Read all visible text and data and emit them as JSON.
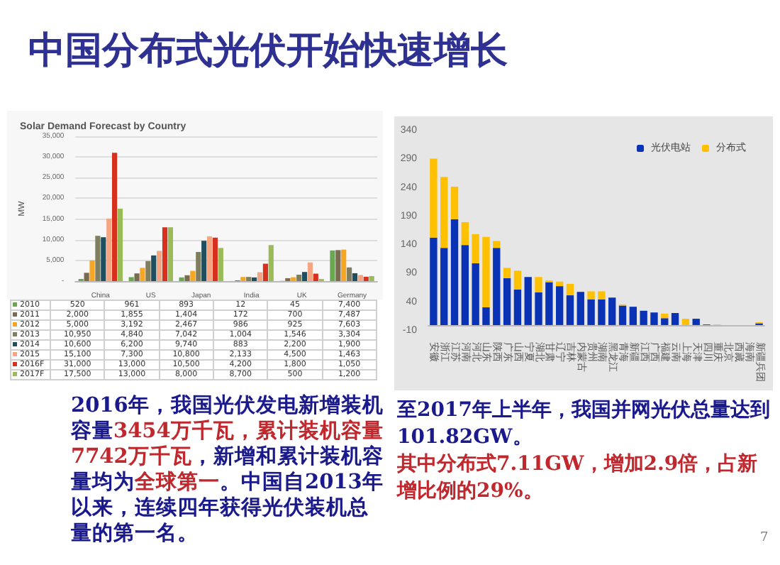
{
  "chart_data": [
    {
      "type": "bar",
      "title": "Solar Demand Forecast by Country",
      "ylabel": "MW",
      "legend": "bottom left",
      "categories": [
        "China",
        "US",
        "Japan",
        "India",
        "UK",
        "Germany"
      ],
      "ylim": [
        0,
        35000
      ],
      "yticks": [
        {
          "value": 0,
          "label": "-"
        },
        {
          "value": 5000,
          "label": "5,000"
        },
        {
          "value": 10000,
          "label": "10,000"
        },
        {
          "value": 15000,
          "label": "15,000"
        },
        {
          "value": 20000,
          "label": "20,000"
        },
        {
          "value": 25000,
          "label": "25,000"
        },
        {
          "value": 30000,
          "label": "30,000"
        },
        {
          "value": 35000,
          "label": "35,000"
        }
      ],
      "grid": "y",
      "series": [
        {
          "name": "2010",
          "color": "#6aa84f",
          "values": [
            520,
            961,
            893,
            12,
            45,
            7400
          ],
          "value_labels": [
            "520",
            "961",
            "893",
            "12",
            "45",
            "7,400"
          ]
        },
        {
          "name": "2011",
          "color": "#7a6a4f",
          "values": [
            2000,
            1855,
            1404,
            172,
            700,
            7487
          ],
          "value_labels": [
            "2,000",
            "1,855",
            "1,404",
            "172",
            "700",
            "7,487"
          ]
        },
        {
          "name": "2012",
          "color": "#f5a623",
          "values": [
            5000,
            3192,
            2467,
            986,
            925,
            7603
          ],
          "value_labels": [
            "5,000",
            "3,192",
            "2,467",
            "986",
            "925",
            "7,603"
          ]
        },
        {
          "name": "2013",
          "color": "#7f7f60",
          "values": [
            10950,
            4840,
            7042,
            1004,
            1546,
            3304
          ],
          "value_labels": [
            "10,950",
            "4,840",
            "7,042",
            "1,004",
            "1,546",
            "3,304"
          ]
        },
        {
          "name": "2014",
          "color": "#1f4e5f",
          "values": [
            10600,
            6200,
            9740,
            883,
            2200,
            1900
          ],
          "value_labels": [
            "10,600",
            "6,200",
            "9,740",
            "883",
            "2,200",
            "1,900"
          ]
        },
        {
          "name": "2015",
          "color": "#f4a582",
          "values": [
            15100,
            7300,
            10800,
            2133,
            4500,
            1463
          ],
          "value_labels": [
            "15,100",
            "7,300",
            "10,800",
            "2,133",
            "4,500",
            "1,463"
          ]
        },
        {
          "name": "2016F",
          "color": "#d7301f",
          "values": [
            31000,
            13000,
            10500,
            4200,
            1800,
            1050
          ],
          "value_labels": [
            "31,000",
            "13,000",
            "10,500",
            "4,200",
            "1,800",
            "1,050"
          ]
        },
        {
          "name": "2017F",
          "color": "#9bbb59",
          "values": [
            17500,
            13000,
            8000,
            8700,
            500,
            1200
          ],
          "value_labels": [
            "17,500",
            "13,000",
            "8,000",
            "8,700",
            "500",
            "1,200"
          ]
        }
      ]
    },
    {
      "type": "bar",
      "stacked": true,
      "legend": "top right",
      "categories": [
        "安徽",
        "浙江",
        "江苏",
        "河南",
        "河北",
        "山东",
        "陕西",
        "广东",
        "山西",
        "宁夏",
        "湖北",
        "甘肃",
        "辽宁",
        "吉林",
        "内蒙古",
        "贵州",
        "湖南",
        "黑龙江",
        "青海",
        "新疆",
        "江西",
        "广西",
        "福建",
        "云南",
        "上海",
        "天津",
        "四川",
        "重庆",
        "北京",
        "西藏",
        "海南",
        "新疆兵团"
      ],
      "ylim": [
        -10,
        340
      ],
      "yticks": [
        -10,
        40,
        90,
        140,
        190,
        240,
        290,
        340
      ],
      "series": [
        {
          "name": "光伏电站",
          "color": "#0a32b4",
          "values": [
            153,
            135,
            185,
            140,
            108,
            31,
            135,
            82,
            62,
            84,
            57,
            75,
            68,
            52,
            58,
            45,
            45,
            48,
            34,
            32,
            25,
            22,
            12,
            21,
            0,
            11,
            1,
            0,
            0,
            0,
            0,
            3
          ]
        },
        {
          "name": "分布式",
          "color": "#ffc000",
          "values": [
            138,
            124,
            57,
            40,
            51,
            123,
            12,
            18,
            33,
            0,
            27,
            3,
            8,
            20,
            0,
            14,
            14,
            0,
            2,
            0,
            0,
            0,
            8,
            0,
            11,
            0,
            0,
            1,
            0,
            0,
            0,
            2
          ]
        }
      ]
    },
    {
      "type": "other",
      "title": "中国分布式光伏开始快速增长",
      "annotations": [
        "2016年，我国光伏发电新增装机容量",
        "3454万千瓦，累计装机容量7742万千瓦",
        "，新增和累计装机容量均为",
        "全球第一",
        "。中国自2013年以来，连续四年获得光伏装机总量的第一名。",
        "至2017年上半年，我国并网光伏总量达到101.82GW。",
        "其中分布式7.11GW，增加2.9倍，占新增比例的29%。",
        "7"
      ]
    }
  ]
}
